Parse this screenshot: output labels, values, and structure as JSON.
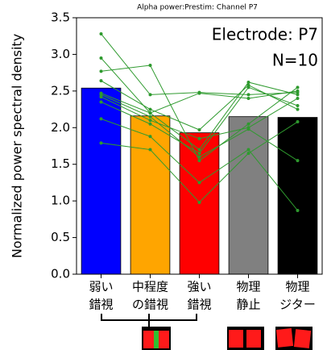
{
  "chart_data": {
    "type": "bar",
    "title": "Alpha power:Prestim: Channel  P7",
    "annotations": [
      "Electrode: P7",
      "N=10"
    ],
    "y_label": "Normalized power spectral density",
    "categories": [
      [
        "弱い",
        "錯視"
      ],
      [
        "中程度",
        "の錯視"
      ],
      [
        "強い",
        "錯視"
      ],
      [
        "物理",
        "静止"
      ],
      [
        "物理",
        "ジター"
      ]
    ],
    "values": [
      2.54,
      2.16,
      1.93,
      2.15,
      2.14
    ],
    "colors": [
      "#0000ff",
      "#ffa500",
      "#ff0000",
      "#808080",
      "#000000"
    ],
    "series": [
      {
        "color": "#2e9a2e",
        "values": [
          3.28,
          2.45,
          2.48,
          2.45,
          2.48
        ]
      },
      {
        "color": "#2e9a2e",
        "values": [
          2.95,
          2.2,
          1.7,
          2.62,
          2.45
        ]
      },
      {
        "color": "#2e9a2e",
        "values": [
          2.77,
          2.85,
          1.55,
          2.05,
          2.55
        ]
      },
      {
        "color": "#2e9a2e",
        "values": [
          2.64,
          2.25,
          1.97,
          2.58,
          2.25
        ]
      },
      {
        "color": "#2e9a2e",
        "values": [
          2.47,
          2.2,
          2.47,
          2.4,
          2.5
        ]
      },
      {
        "color": "#2e9a2e",
        "values": [
          2.42,
          2.1,
          1.85,
          2.0,
          2.4
        ]
      },
      {
        "color": "#2e9a2e",
        "values": [
          2.35,
          2.05,
          1.65,
          2.55,
          2.3
        ]
      },
      {
        "color": "#2e9a2e",
        "values": [
          2.12,
          1.88,
          1.25,
          1.7,
          0.87
        ]
      },
      {
        "color": "#2e9a2e",
        "values": [
          1.79,
          1.7,
          0.98,
          1.65,
          2.08
        ]
      },
      {
        "color": "#2e9a2e",
        "values": [
          2.45,
          2.15,
          1.6,
          1.98,
          1.55
        ]
      }
    ],
    "ylim": [
      0,
      3.5
    ],
    "yticks": [
      {
        "value": 0,
        "label": "0.0"
      },
      0.5,
      {
        "value": 1,
        "label": "1.0"
      },
      1.5,
      {
        "value": 2,
        "label": "2.0"
      },
      2.5,
      {
        "value": 3,
        "label": "3.0"
      },
      3.5
    ],
    "grid": false
  }
}
